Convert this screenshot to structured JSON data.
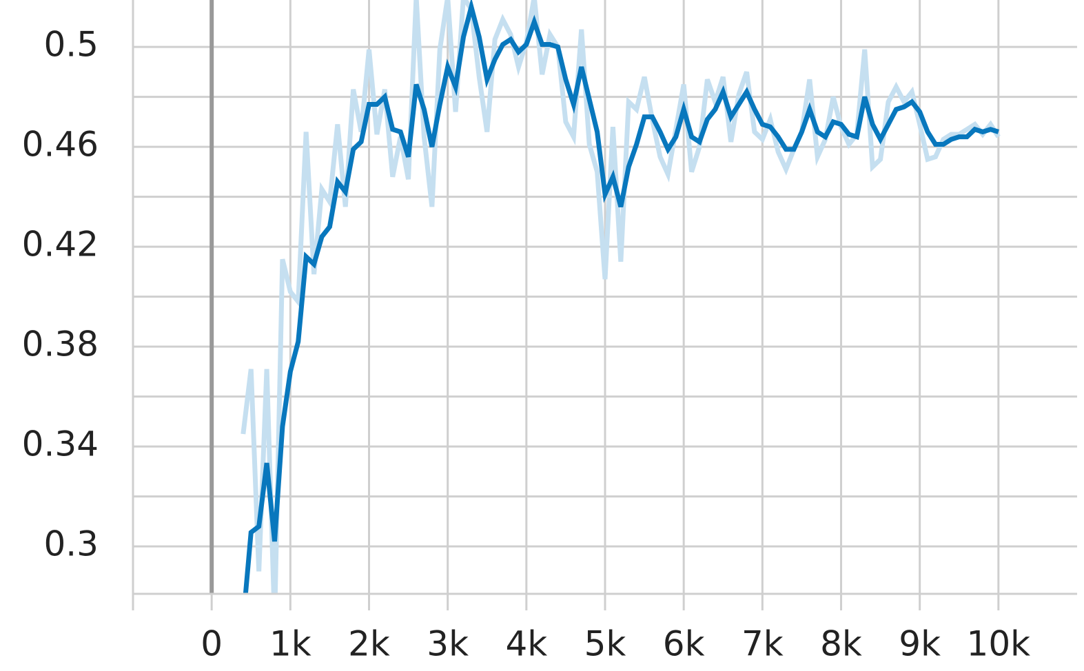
{
  "chart_data": {
    "type": "line",
    "x": [
      400,
      500,
      600,
      700,
      800,
      900,
      1000,
      1100,
      1200,
      1300,
      1400,
      1500,
      1600,
      1700,
      1800,
      1900,
      2000,
      2100,
      2200,
      2300,
      2400,
      2500,
      2600,
      2700,
      2800,
      2900,
      3000,
      3100,
      3200,
      3300,
      3400,
      3500,
      3600,
      3700,
      3800,
      3900,
      4000,
      4100,
      4200,
      4300,
      4400,
      4500,
      4600,
      4700,
      4800,
      4900,
      5000,
      5100,
      5200,
      5300,
      5400,
      5500,
      5600,
      5700,
      5800,
      5900,
      6000,
      6100,
      6200,
      6300,
      6400,
      6500,
      6600,
      6700,
      6800,
      6900,
      7000,
      7100,
      7200,
      7300,
      7400,
      7500,
      7600,
      7700,
      7800,
      7900,
      8000,
      8100,
      8200,
      8300,
      8400,
      8500,
      8600,
      8700,
      8800,
      8900,
      9000,
      9100,
      9200,
      9300,
      9400,
      9500,
      9600,
      9700,
      9800,
      9900,
      10000
    ],
    "series": [
      {
        "color": "#c5dff0",
        "values": [
          0.345,
          0.371,
          0.29,
          0.371,
          0.27,
          0.415,
          0.402,
          0.398,
          0.466,
          0.409,
          0.443,
          0.438,
          0.469,
          0.436,
          0.483,
          0.466,
          0.499,
          0.465,
          0.483,
          0.448,
          0.464,
          0.447,
          0.52,
          0.464,
          0.436,
          0.499,
          0.52,
          0.474,
          0.52,
          0.515,
          0.488,
          0.466,
          0.503,
          0.511,
          0.505,
          0.492,
          0.502,
          0.52,
          0.489,
          0.505,
          0.5,
          0.47,
          0.464,
          0.507,
          0.461,
          0.45,
          0.407,
          0.468,
          0.414,
          0.478,
          0.475,
          0.488,
          0.471,
          0.456,
          0.449,
          0.467,
          0.485,
          0.45,
          0.46,
          0.487,
          0.478,
          0.488,
          0.462,
          0.481,
          0.49,
          0.466,
          0.463,
          0.471,
          0.458,
          0.451,
          0.459,
          0.466,
          0.487,
          0.456,
          0.463,
          0.48,
          0.468,
          0.461,
          0.465,
          0.499,
          0.452,
          0.455,
          0.478,
          0.484,
          0.478,
          0.482,
          0.469,
          0.455,
          0.456,
          0.463,
          0.465,
          0.465,
          0.467,
          0.469,
          0.465,
          0.469,
          0.464
        ]
      },
      {
        "color": "#0877bd",
        "values": [
          0.27,
          0.3056,
          0.308,
          0.3334,
          0.302,
          0.348,
          0.37,
          0.382,
          0.416,
          0.413,
          0.424,
          0.428,
          0.446,
          0.442,
          0.459,
          0.462,
          0.477,
          0.477,
          0.48,
          0.467,
          0.466,
          0.456,
          0.485,
          0.475,
          0.46,
          0.477,
          0.492,
          0.484,
          0.504,
          0.516,
          0.504,
          0.487,
          0.495,
          0.501,
          0.503,
          0.498,
          0.501,
          0.51,
          0.501,
          0.501,
          0.5,
          0.487,
          0.477,
          0.492,
          0.479,
          0.466,
          0.441,
          0.448,
          0.436,
          0.452,
          0.461,
          0.472,
          0.472,
          0.466,
          0.459,
          0.464,
          0.475,
          0.464,
          0.462,
          0.471,
          0.475,
          0.482,
          0.472,
          0.477,
          0.482,
          0.475,
          0.469,
          0.468,
          0.464,
          0.459,
          0.459,
          0.466,
          0.475,
          0.466,
          0.464,
          0.47,
          0.469,
          0.465,
          0.464,
          0.48,
          0.469,
          0.463,
          0.469,
          0.475,
          0.476,
          0.478,
          0.474,
          0.466,
          0.461,
          0.461,
          0.463,
          0.464,
          0.464,
          0.467,
          0.466,
          0.467,
          0.466
        ]
      }
    ],
    "xlim": [
      -1000,
      11000
    ],
    "ylim": [
      0.281,
      0.5188
    ],
    "xticks": [
      {
        "value": 0,
        "label": "0"
      },
      {
        "value": 1000,
        "label": "1k"
      },
      {
        "value": 2000,
        "label": "2k"
      },
      {
        "value": 3000,
        "label": "3k"
      },
      {
        "value": 4000,
        "label": "4k"
      },
      {
        "value": 5000,
        "label": "5k"
      },
      {
        "value": 6000,
        "label": "6k"
      },
      {
        "value": 7000,
        "label": "7k"
      },
      {
        "value": 8000,
        "label": "8k"
      },
      {
        "value": 9000,
        "label": "9k"
      },
      {
        "value": 10000,
        "label": "10k"
      }
    ],
    "minor_xticks": [
      -1000
    ],
    "yticks": [
      0.3,
      0.34,
      0.38,
      0.42,
      0.46,
      0.5
    ],
    "minor_yticks": [
      0.32,
      0.36,
      0.4,
      0.44,
      0.48
    ],
    "grid": true
  }
}
